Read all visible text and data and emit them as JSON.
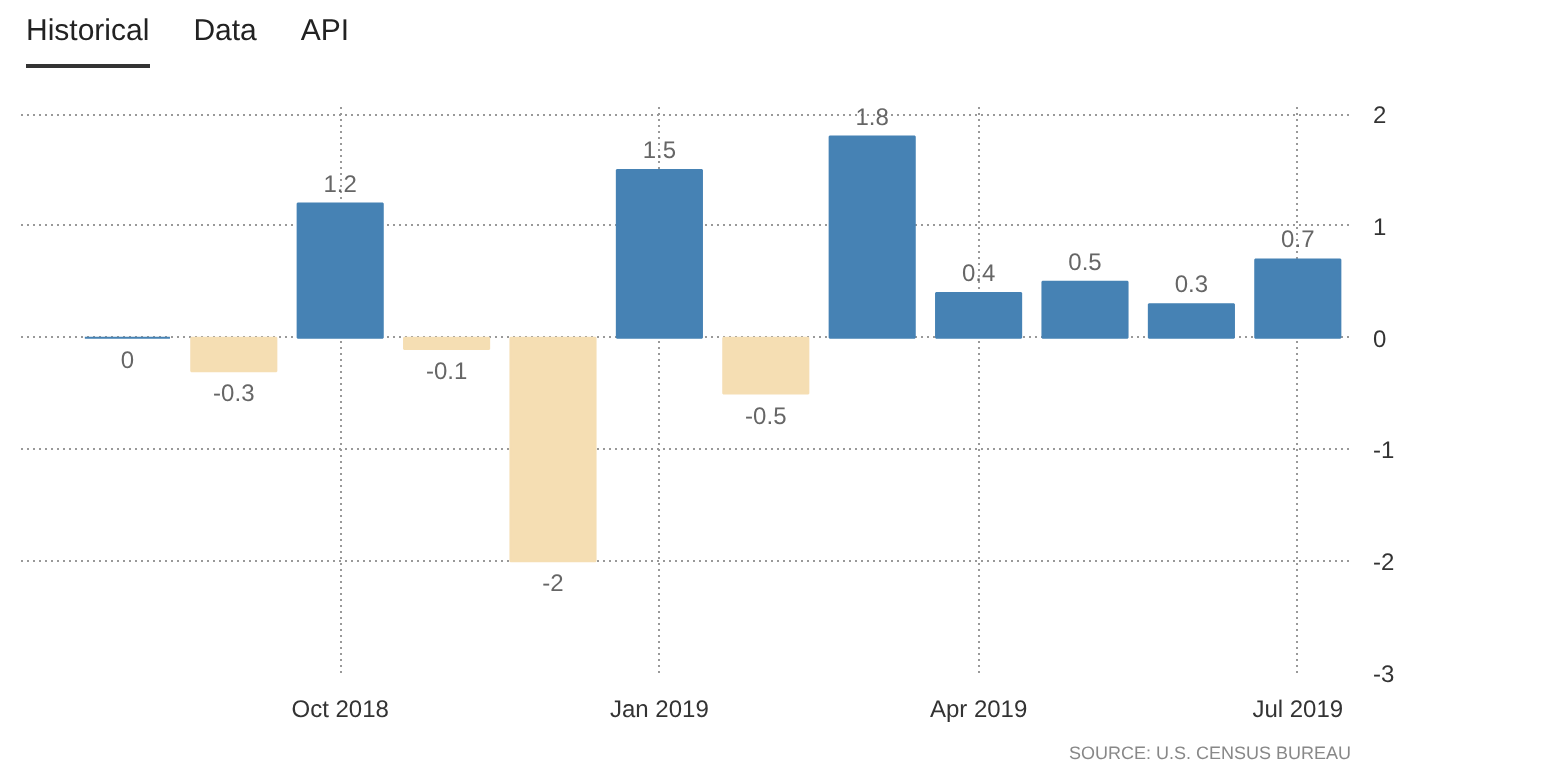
{
  "chart_data": {
    "type": "bar",
    "categories": [
      null,
      null,
      "Oct 2018",
      null,
      null,
      "Jan 2019",
      null,
      null,
      "Apr 2019",
      null,
      null,
      "Jul 2019"
    ],
    "values": [
      0,
      -0.3,
      1.2,
      -0.1,
      -2,
      1.5,
      -0.5,
      1.8,
      0.4,
      0.5,
      0.3,
      0.7
    ],
    "colors": [
      "#4682b4",
      "#f5deb3",
      "#4682b4",
      "#f5deb3",
      "#f5deb3",
      "#4682b4",
      "#f5deb3",
      "#4682b4",
      "#4682b4",
      "#4682b4",
      "#4682b4",
      "#4682b4"
    ],
    "ylim": [
      -3,
      2.1
    ],
    "yticks": [
      -3,
      -2,
      -1,
      0,
      1,
      2
    ],
    "grid": true,
    "data_labels": true,
    "annotations": [
      "Historical",
      "Data",
      "API",
      "SOURCE: U.S. CENSUS BUREAU"
    ]
  }
}
